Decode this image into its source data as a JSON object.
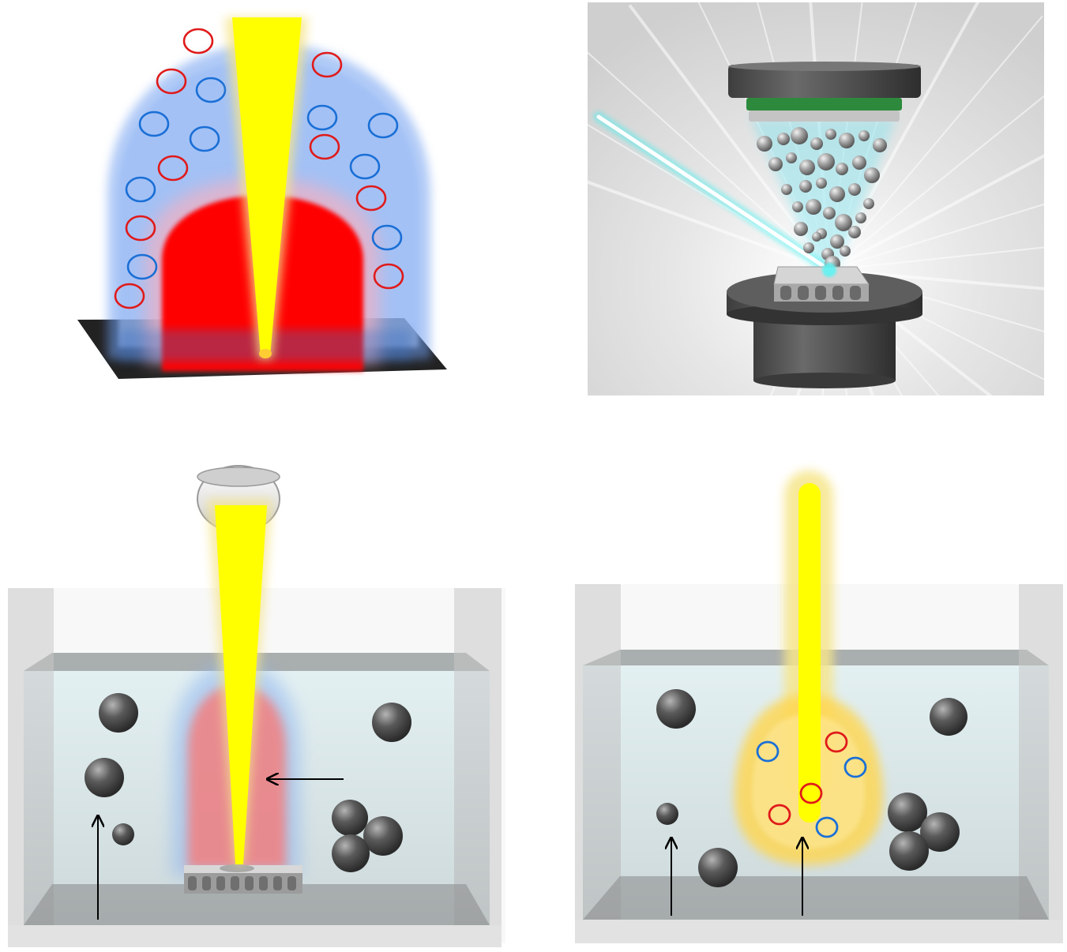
{
  "figure": {
    "panels": [
      {
        "id": "plasma-plume",
        "beam_color": "#ffff00",
        "plume_color": "#ff0000",
        "halo_color": "#6f9ff0",
        "substrate_color": "#222222",
        "species": [
          {
            "charge": "positive",
            "color": "#e01a1a"
          },
          {
            "charge": "negative",
            "color": "#1a6fd6"
          }
        ]
      },
      {
        "id": "pulsed-laser-deposition",
        "laser_color": "#3ff0f0",
        "particle_color": "#9a9a9a",
        "target_holder_color": "#555555",
        "substrate_band_color": "#2d8a3c",
        "background_color": "#d9d9d9"
      },
      {
        "id": "laser-ablation-in-liquid",
        "liquid_color": "#e3f0f2",
        "container_color": "#c9c9c9",
        "beam_color": "#ffff00",
        "plume_color": "#f28080",
        "nanoparticle_color": "#555555"
      },
      {
        "id": "laser-irradiation-in-liquid",
        "liquid_color": "#e3f0f2",
        "container_color": "#c9c9c9",
        "beam_color": "#ffff00",
        "plume_color": "#ffd64d",
        "nanoparticle_color": "#555555",
        "species": [
          {
            "charge": "positive",
            "color": "#e01a1a"
          },
          {
            "charge": "negative",
            "color": "#1a6fd6"
          }
        ]
      }
    ]
  }
}
